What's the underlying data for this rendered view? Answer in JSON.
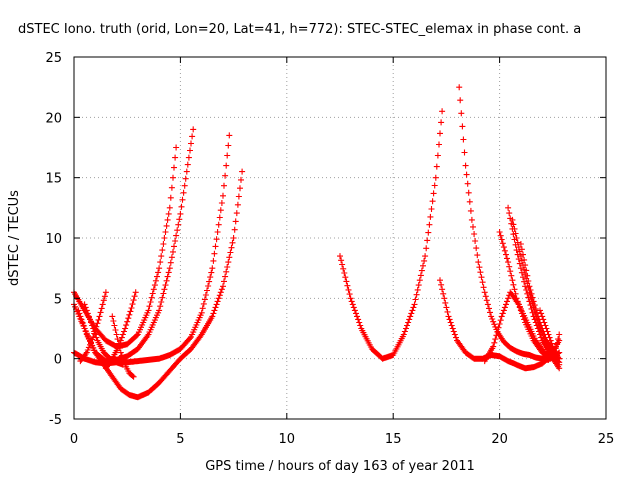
{
  "chart_data": {
    "type": "scatter",
    "title": "dSTEC Iono. truth (orid, Lon=20, Lat=41, h=772): STEC-STEC_elemax in phase cont. a",
    "xlabel": "GPS time / hours of day 163 of year 2011",
    "ylabel": "dSTEC  / TECUs",
    "xlim": [
      0,
      25
    ],
    "ylim": [
      -5,
      25
    ],
    "x_ticks": [
      0,
      5,
      10,
      15,
      20,
      25
    ],
    "y_ticks": [
      -5,
      0,
      5,
      10,
      15,
      20,
      25
    ],
    "x_tick_labels": [
      "0",
      "5",
      "10",
      "15",
      "20",
      "25"
    ],
    "y_tick_labels": [
      "-5",
      "0",
      "5",
      "10",
      "15",
      "20",
      "25"
    ],
    "grid": true,
    "marker": "+",
    "color": "#ff0000",
    "series": [
      {
        "x": [
          0.0,
          0.5,
          1.0,
          1.5,
          2.0,
          2.5,
          3.0,
          3.5,
          4.0,
          4.5,
          5.0,
          5.3,
          5.6
        ],
        "y": [
          4.5,
          2.5,
          0.5,
          -0.2,
          -0.1,
          0.2,
          0.8,
          2.0,
          4.0,
          7.5,
          12.0,
          15.5,
          19.0
        ]
      },
      {
        "x": [
          0.0,
          0.5,
          1.0,
          1.5,
          2.0,
          2.5,
          3.0,
          3.5,
          4.0,
          4.5,
          4.8
        ],
        "y": [
          5.5,
          4.0,
          2.5,
          1.5,
          1.0,
          1.2,
          2.0,
          4.0,
          7.5,
          12.5,
          17.5
        ]
      },
      {
        "x": [
          0.0,
          0.5,
          1.0,
          1.5,
          2.0,
          2.5,
          3.0,
          3.5,
          4.0,
          4.5,
          5.0,
          5.5,
          6.0,
          6.5,
          7.0,
          7.3
        ],
        "y": [
          0.5,
          0.0,
          -0.3,
          -0.4,
          -0.3,
          -0.3,
          -0.2,
          -0.1,
          0.0,
          0.3,
          0.8,
          1.8,
          3.8,
          7.5,
          13.5,
          18.5
        ]
      },
      {
        "x": [
          0.2,
          0.6,
          1.0,
          1.4,
          1.8,
          2.2,
          2.6,
          3.0,
          3.5,
          4.0,
          4.5,
          5.0,
          5.5,
          6.0,
          6.5,
          7.0,
          7.5,
          7.9
        ],
        "y": [
          4.0,
          2.0,
          0.5,
          -0.5,
          -1.5,
          -2.5,
          -3.0,
          -3.2,
          -2.8,
          -2.0,
          -1.0,
          0.0,
          0.8,
          2.0,
          3.5,
          6.0,
          10.0,
          15.5
        ]
      },
      {
        "x": [
          0.3,
          0.6,
          0.9,
          1.2,
          1.5
        ],
        "y": [
          -0.2,
          0.5,
          1.8,
          3.5,
          5.5
        ]
      },
      {
        "x": [
          0.5,
          0.8,
          1.1,
          1.4,
          1.7,
          2.0,
          2.3
        ],
        "y": [
          4.5,
          3.0,
          1.5,
          0.5,
          0.0,
          -0.3,
          -0.5
        ]
      },
      {
        "x": [
          1.5,
          1.8,
          2.1,
          2.4,
          2.7,
          2.9
        ],
        "y": [
          -0.8,
          0.0,
          1.0,
          2.5,
          4.2,
          5.5
        ]
      },
      {
        "x": [
          1.8,
          2.0,
          2.2,
          2.4,
          2.6,
          2.8
        ],
        "y": [
          3.5,
          2.0,
          0.5,
          -0.5,
          -1.2,
          -1.5
        ]
      },
      {
        "x": [
          12.5,
          13.0,
          13.5,
          14.0,
          14.5,
          15.0,
          15.5,
          16.0,
          16.5,
          17.0,
          17.3
        ],
        "y": [
          8.5,
          5.0,
          2.5,
          0.8,
          0.0,
          0.3,
          2.0,
          4.5,
          8.5,
          15.0,
          20.5
        ]
      },
      {
        "x": [
          17.2,
          17.6,
          18.0,
          18.4,
          18.8,
          19.2,
          19.6,
          20.0,
          20.4,
          20.8,
          21.2,
          21.6,
          22.0,
          22.4,
          22.8
        ],
        "y": [
          6.5,
          3.5,
          1.5,
          0.5,
          0.0,
          0.0,
          0.3,
          0.2,
          -0.2,
          -0.5,
          -0.8,
          -0.7,
          -0.4,
          0.2,
          1.5
        ]
      },
      {
        "x": [
          18.1,
          18.4,
          18.7,
          19.0,
          19.3,
          19.6,
          19.9,
          20.2,
          20.5,
          20.8,
          21.1,
          21.4,
          21.7,
          22.0,
          22.3,
          22.6,
          22.8
        ],
        "y": [
          22.5,
          16.0,
          11.5,
          8.0,
          5.5,
          3.5,
          2.2,
          1.4,
          0.9,
          0.6,
          0.4,
          0.3,
          0.1,
          0.0,
          -0.1,
          0.5,
          2.0
        ]
      },
      {
        "x": [
          19.3,
          19.7,
          20.1,
          20.5,
          20.9,
          21.3,
          21.7,
          22.1,
          22.5,
          22.8
        ],
        "y": [
          -0.2,
          1.0,
          3.5,
          5.5,
          4.5,
          3.0,
          1.5,
          0.5,
          0.0,
          -0.8
        ]
      },
      {
        "x": [
          20.0,
          20.4,
          20.8,
          21.2,
          21.6,
          22.0,
          22.4,
          22.8
        ],
        "y": [
          10.5,
          8.0,
          5.0,
          3.0,
          1.5,
          0.5,
          0.0,
          0.5
        ]
      },
      {
        "x": [
          20.4,
          20.8,
          21.2,
          21.6,
          22.0,
          22.4,
          22.8
        ],
        "y": [
          12.5,
          9.0,
          6.0,
          3.5,
          1.5,
          0.3,
          0.0
        ]
      },
      {
        "x": [
          21.0,
          21.4,
          21.8,
          22.2,
          22.6,
          22.8
        ],
        "y": [
          9.5,
          6.0,
          3.5,
          1.5,
          0.5,
          0.0
        ]
      },
      {
        "x": [
          20.6,
          21.0,
          21.4,
          21.8,
          22.2,
          22.6,
          22.8
        ],
        "y": [
          11.5,
          8.5,
          5.5,
          3.0,
          1.2,
          0.0,
          -0.3
        ]
      },
      {
        "x": [
          21.9,
          22.2,
          22.5,
          22.8
        ],
        "y": [
          4.0,
          2.5,
          1.0,
          -0.5
        ]
      }
    ]
  }
}
